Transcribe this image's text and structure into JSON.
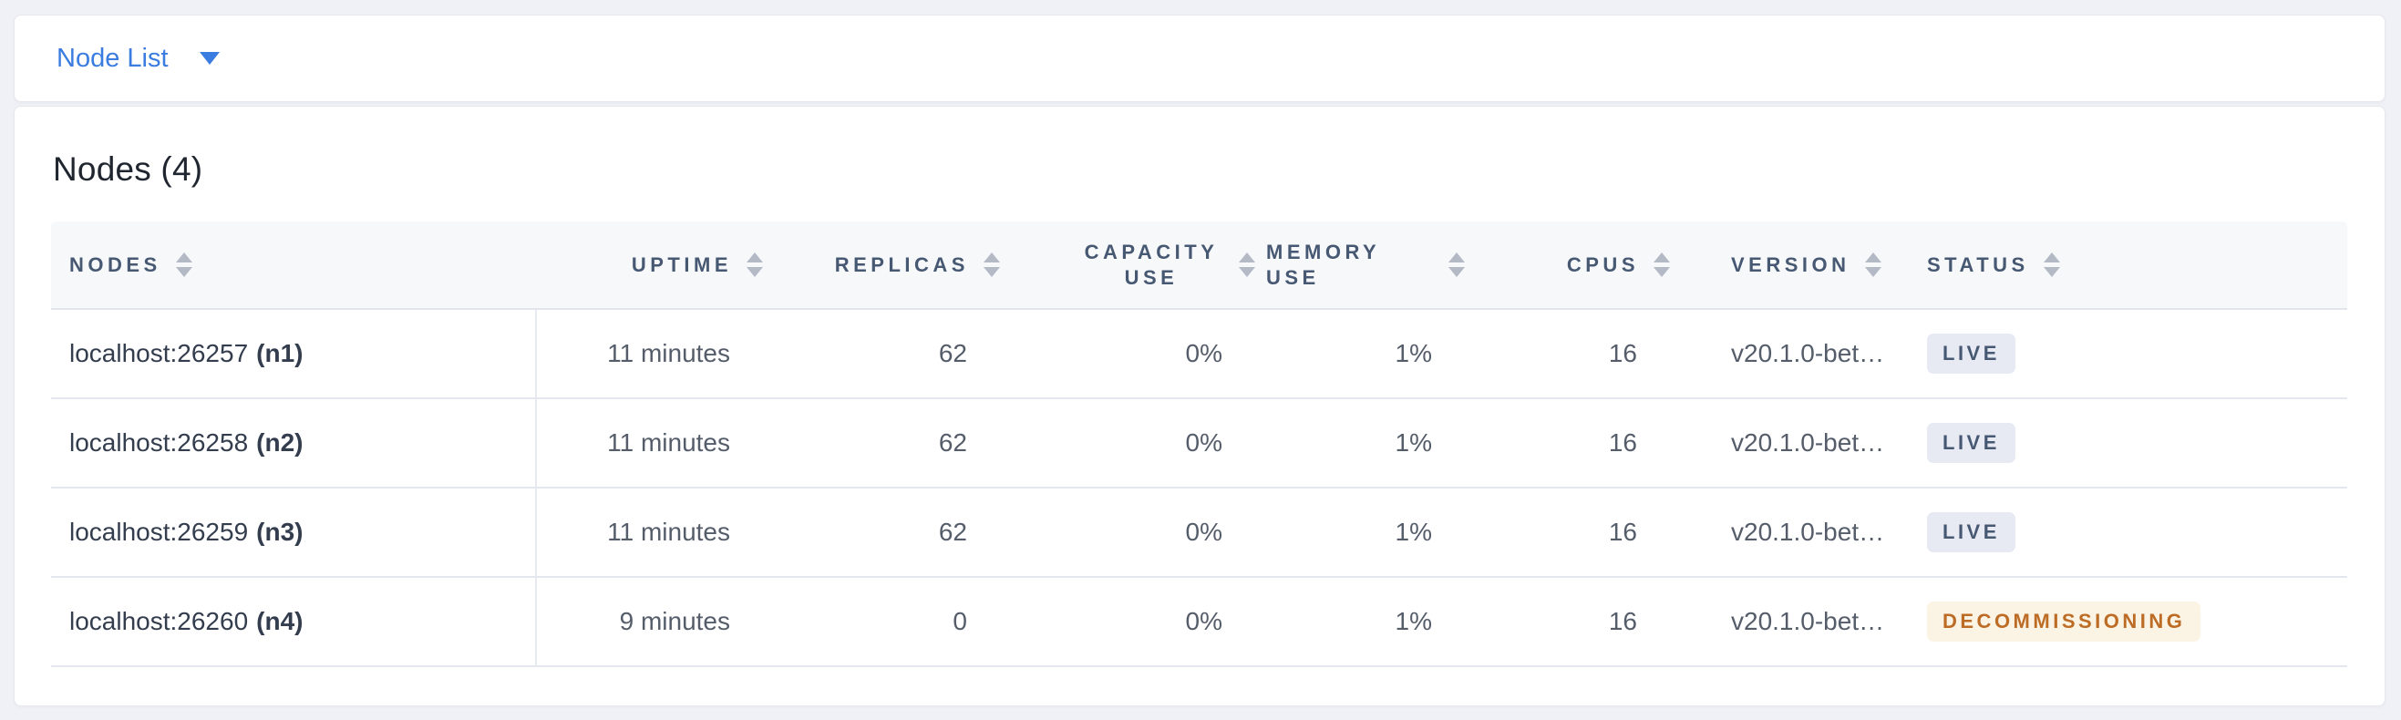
{
  "toolbar": {
    "view_selector_label": "Node List",
    "view_selector_icon": "chevron-down-icon"
  },
  "main": {
    "title": "Nodes (4)",
    "table": {
      "columns": [
        {
          "label": "NODES",
          "sortable": true,
          "align": "left"
        },
        {
          "label": "UPTIME",
          "sortable": true,
          "align": "right"
        },
        {
          "label": "REPLICAS",
          "sortable": true,
          "align": "right"
        },
        {
          "label": "CAPACITY USE",
          "sortable": true,
          "align": "right"
        },
        {
          "label": "MEMORY USE",
          "sortable": true,
          "align": "right"
        },
        {
          "label": "CPUS",
          "sortable": true,
          "align": "right"
        },
        {
          "label": "VERSION",
          "sortable": true,
          "align": "left"
        },
        {
          "label": "STATUS",
          "sortable": true,
          "align": "left"
        }
      ],
      "rows": [
        {
          "address": "localhost:26257",
          "node_id": "(n1)",
          "uptime": "11 minutes",
          "replicas": "62",
          "capacity_use": "0%",
          "memory_use": "1%",
          "cpus": "16",
          "version": "v20.1.0-bet…",
          "status": "LIVE",
          "status_type": "live"
        },
        {
          "address": "localhost:26258",
          "node_id": "(n2)",
          "uptime": "11 minutes",
          "replicas": "62",
          "capacity_use": "0%",
          "memory_use": "1%",
          "cpus": "16",
          "version": "v20.1.0-bet…",
          "status": "LIVE",
          "status_type": "live"
        },
        {
          "address": "localhost:26259",
          "node_id": "(n3)",
          "uptime": "11 minutes",
          "replicas": "62",
          "capacity_use": "0%",
          "memory_use": "1%",
          "cpus": "16",
          "version": "v20.1.0-bet…",
          "status": "LIVE",
          "status_type": "live"
        },
        {
          "address": "localhost:26260",
          "node_id": "(n4)",
          "uptime": "9 minutes",
          "replicas": "0",
          "capacity_use": "0%",
          "memory_use": "1%",
          "cpus": "16",
          "version": "v20.1.0-bet…",
          "status": "DECOMMISSIONING",
          "status_type": "decommissioning"
        }
      ]
    }
  },
  "icons": {
    "selector_caret": "chevron-down-icon",
    "column_sort": "sort-arrows-icon"
  },
  "colors": {
    "accent_blue": "#3a7ce0",
    "page_background": "#eff1f6",
    "header_text": "#475872",
    "live_badge_bg": "#e7eaf3",
    "live_badge_text": "#475872",
    "decommissioning_badge_bg": "#fbf3e3",
    "decommissioning_badge_text": "#bd6c26"
  }
}
